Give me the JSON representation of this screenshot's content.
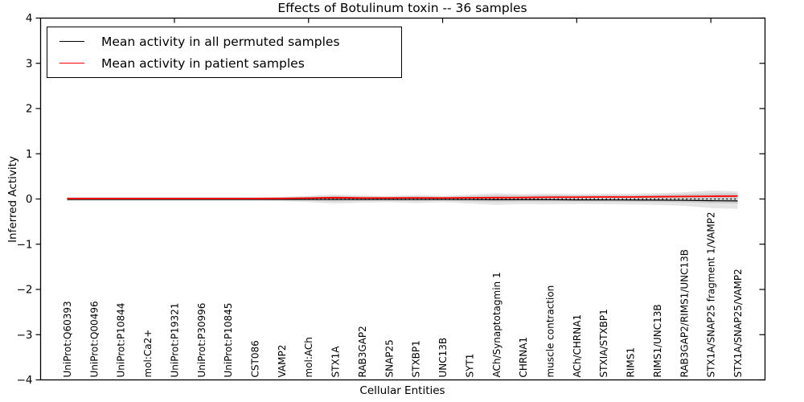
{
  "chart_data": {
    "type": "line",
    "title": "Effects of Botulinum toxin -- 36 samples",
    "xlabel": "Cellular Entities",
    "ylabel": "Inferred Activity",
    "ylim": [
      -4,
      4
    ],
    "yticks": [
      4,
      3,
      2,
      1,
      0,
      -1,
      -2,
      -3,
      -4
    ],
    "grid": false,
    "legend_position": "upper left",
    "categories": [
      "UniProt:Q60393",
      "UniProt:Q00496",
      "UniProt:P10844",
      "mol:Ca2+",
      "UniProt:P19321",
      "UniProt:P30996",
      "UniProt:P10845",
      "CST086",
      "VAMP2",
      "mol:ACh",
      "STX1A",
      "RAB3GAP2",
      "SNAP25",
      "STXBP1",
      "UNC13B",
      "SYT1",
      "ACh/Synaptotagmin 1",
      "CHRNA1",
      "muscle contraction",
      "ACh/CHRNA1",
      "STXIA/STXBP1",
      "RIMS1",
      "RIMS1/UNC13B",
      "RAB3GAP2/RIMS1/UNC13B",
      "STX1A/SNAP25 fragment 1/VAMP2",
      "STX1A/SNAP25/VAMP2"
    ],
    "series": [
      {
        "name": "Mean activity in all permuted samples",
        "color": "#000000",
        "width": 1.2,
        "values": [
          -0.01,
          -0.01,
          -0.01,
          -0.01,
          -0.01,
          -0.01,
          -0.01,
          -0.01,
          -0.01,
          -0.01,
          -0.01,
          -0.01,
          -0.01,
          -0.01,
          -0.01,
          -0.012,
          -0.015,
          -0.015,
          -0.015,
          -0.02,
          -0.02,
          -0.022,
          -0.025,
          -0.03,
          -0.038,
          -0.042
        ]
      },
      {
        "name": "Mean activity in patient samples",
        "color": "#ff0000",
        "width": 1.8,
        "values": [
          0.01,
          0.01,
          0.01,
          0.01,
          0.01,
          0.01,
          0.01,
          0.01,
          0.012,
          0.02,
          0.03,
          0.022,
          0.022,
          0.025,
          0.022,
          0.026,
          0.03,
          0.032,
          0.04,
          0.04,
          0.045,
          0.045,
          0.05,
          0.055,
          0.06,
          0.065
        ]
      }
    ],
    "bands": [
      {
        "name": "permuted-samples-range",
        "color": "rgba(0,0,0,0.10)",
        "hi": [
          0.045,
          0.045,
          0.045,
          0.045,
          0.045,
          0.045,
          0.045,
          0.045,
          0.05,
          0.07,
          0.1,
          0.08,
          0.065,
          0.09,
          0.07,
          0.095,
          0.13,
          0.11,
          0.12,
          0.11,
          0.115,
          0.12,
          0.13,
          0.15,
          0.19,
          0.17
        ],
        "lo": [
          -0.045,
          -0.045,
          -0.045,
          -0.045,
          -0.045,
          -0.045,
          -0.045,
          -0.045,
          -0.05,
          -0.07,
          -0.1,
          -0.08,
          -0.07,
          -0.09,
          -0.07,
          -0.1,
          -0.13,
          -0.11,
          -0.12,
          -0.11,
          -0.115,
          -0.12,
          -0.13,
          -0.15,
          -0.2,
          -0.22
        ],
        "legend": false
      },
      {
        "name": "patient-samples-range",
        "color": "rgba(0,0,0,0.10)",
        "hi": [
          0.03,
          0.03,
          0.03,
          0.03,
          0.03,
          0.03,
          0.03,
          0.03,
          0.035,
          0.05,
          0.07,
          0.055,
          0.05,
          0.06,
          0.05,
          0.065,
          0.085,
          0.075,
          0.085,
          0.08,
          0.085,
          0.085,
          0.095,
          0.11,
          0.13,
          0.125
        ],
        "lo": [
          -0.025,
          -0.025,
          -0.025,
          -0.025,
          -0.025,
          -0.025,
          -0.025,
          -0.025,
          -0.03,
          -0.04,
          -0.055,
          -0.045,
          -0.04,
          -0.05,
          -0.04,
          -0.05,
          -0.065,
          -0.055,
          -0.06,
          -0.055,
          -0.06,
          -0.06,
          -0.065,
          -0.075,
          -0.09,
          -0.1
        ],
        "legend": false
      }
    ],
    "zero_line": {
      "value": 0,
      "style": "dotted",
      "color": "#000000"
    },
    "top_tick_categories": [
      4,
      9,
      14,
      19,
      24
    ],
    "legend": {
      "entries": [
        {
          "label": "Mean activity in all permuted samples",
          "color": "#000000"
        },
        {
          "label": "Mean activity in patient samples",
          "color": "#ff0000"
        }
      ]
    }
  }
}
